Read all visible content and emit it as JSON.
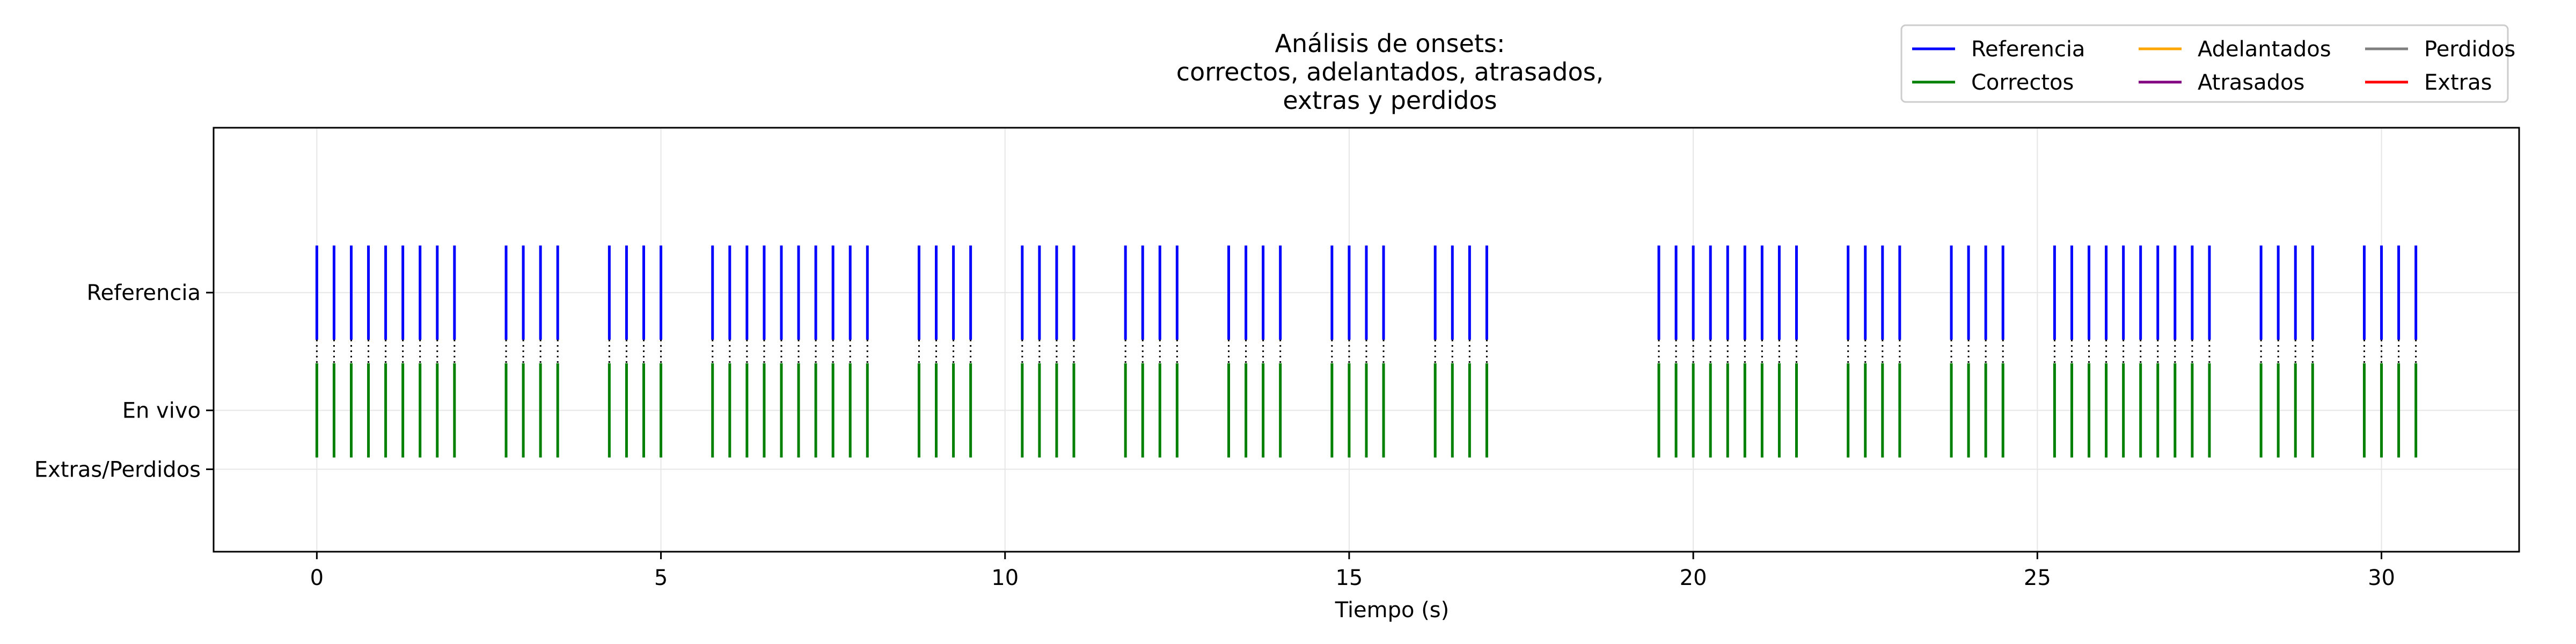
{
  "chart_data": {
    "type": "event-plot",
    "title": [
      "Análisis de onsets:",
      "correctos, adelantados, atrasados,",
      "extras y perdidos"
    ],
    "xlabel": "Tiempo (s)",
    "ylabel": "",
    "xlim": [
      -1.5,
      32
    ],
    "ylim": [
      -1.2,
      2.4
    ],
    "grid": true,
    "x_ticks": [
      0,
      5,
      10,
      15,
      20,
      25,
      30
    ],
    "y_ticks": [
      {
        "label": "Referencia",
        "value": 1.0
      },
      {
        "label": "En vivo",
        "value": 0.0
      },
      {
        "label": "Extras/Perdidos",
        "value": -0.5
      }
    ],
    "legend": {
      "placement": "top-right",
      "entries": [
        {
          "name": "Referencia",
          "color": "#0000ff"
        },
        {
          "name": "Adelantados",
          "color": "#ffa500"
        },
        {
          "name": "Perdidos",
          "color": "#808080"
        },
        {
          "name": "Correctos",
          "color": "#008000"
        },
        {
          "name": "Atrasados",
          "color": "#800080"
        },
        {
          "name": "Extras",
          "color": "#ff0000"
        }
      ]
    },
    "series": [
      {
        "name": "Referencia",
        "color": "#0000ff",
        "y_range": [
          0.6,
          1.4
        ],
        "x": [
          0.0,
          0.25,
          0.5,
          0.75,
          1.0,
          1.25,
          1.5,
          1.75,
          2.0,
          2.75,
          3.0,
          3.25,
          3.5,
          4.25,
          4.5,
          4.75,
          5.0,
          5.75,
          6.0,
          6.25,
          6.5,
          6.75,
          7.0,
          7.25,
          7.5,
          7.75,
          8.0,
          8.75,
          9.0,
          9.25,
          9.5,
          10.25,
          10.5,
          10.75,
          11.0,
          11.75,
          12.0,
          12.25,
          12.5,
          13.25,
          13.5,
          13.75,
          14.0,
          14.75,
          15.0,
          15.25,
          15.5,
          16.25,
          16.5,
          16.75,
          17.0,
          19.5,
          19.75,
          20.0,
          20.25,
          20.5,
          20.75,
          21.0,
          21.25,
          21.5,
          22.25,
          22.5,
          22.75,
          23.0,
          23.75,
          24.0,
          24.25,
          24.5,
          25.25,
          25.5,
          25.75,
          26.0,
          26.25,
          26.5,
          26.75,
          27.0,
          27.25,
          27.5,
          28.25,
          28.5,
          28.75,
          29.0,
          29.75,
          30.0,
          30.25,
          30.5
        ]
      },
      {
        "name": "Correctos",
        "color": "#008000",
        "y_range": [
          -0.4,
          0.4
        ],
        "x": [
          0.0,
          0.25,
          0.5,
          0.75,
          1.0,
          1.25,
          1.5,
          1.75,
          2.0,
          2.75,
          3.0,
          3.25,
          3.5,
          4.25,
          4.5,
          4.75,
          5.0,
          5.75,
          6.0,
          6.25,
          6.5,
          6.75,
          7.0,
          7.25,
          7.5,
          7.75,
          8.0,
          8.75,
          9.0,
          9.25,
          9.5,
          10.25,
          10.5,
          10.75,
          11.0,
          11.75,
          12.0,
          12.25,
          12.5,
          13.25,
          13.5,
          13.75,
          14.0,
          14.75,
          15.0,
          15.25,
          15.5,
          16.25,
          16.5,
          16.75,
          17.0,
          19.5,
          19.75,
          20.0,
          20.25,
          20.5,
          20.75,
          21.0,
          21.25,
          21.5,
          22.25,
          22.5,
          22.75,
          23.0,
          23.75,
          24.0,
          24.25,
          24.5,
          25.25,
          25.5,
          25.75,
          26.0,
          26.25,
          26.5,
          26.75,
          27.0,
          27.25,
          27.5,
          28.25,
          28.5,
          28.75,
          29.0,
          29.75,
          30.0,
          30.25,
          30.5
        ]
      }
    ],
    "connectors": {
      "style": "dotted",
      "color": "#000000",
      "y_range": [
        0.4,
        0.6
      ]
    }
  }
}
